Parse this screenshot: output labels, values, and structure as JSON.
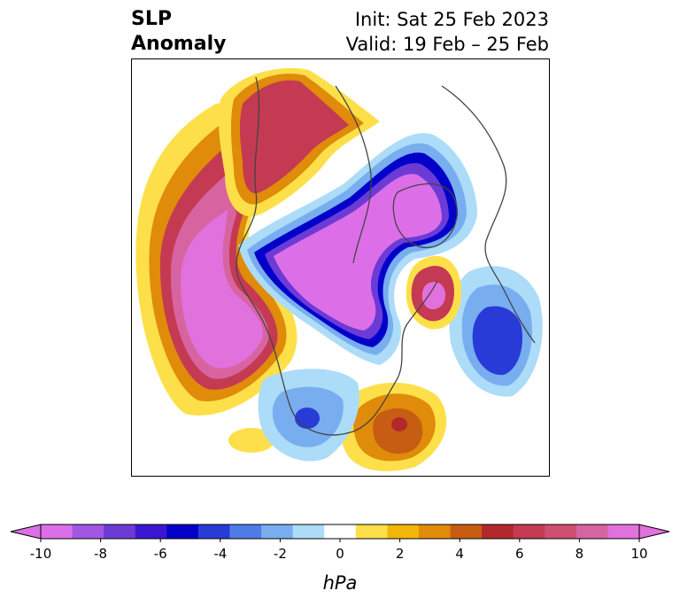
{
  "title": {
    "left_line1": "SLP",
    "left_line2": "Anomaly",
    "right_line1": "Init: Sat 25 Feb 2023",
    "right_line2": "Valid: 19 Feb – 25 Feb"
  },
  "colorbar": {
    "unit": "hPa",
    "tick_labels": [
      "-10",
      "-8",
      "-6",
      "-4",
      "-2",
      "0",
      "2",
      "4",
      "6",
      "8",
      "10"
    ],
    "colors": [
      "#dc6fe8",
      "#a157e2",
      "#6c3bd6",
      "#3b17d1",
      "#0300c9",
      "#283bd7",
      "#4f7be7",
      "#78aef0",
      "#acdcf8",
      "#ffffff",
      "#fde049",
      "#f2b609",
      "#e08b0a",
      "#c75d12",
      "#b3282a",
      "#c43a52",
      "#cf4f72",
      "#d764a1",
      "#e171dc"
    ],
    "over_color": "#e171dc",
    "under_color": "#dc6fe8"
  }
}
